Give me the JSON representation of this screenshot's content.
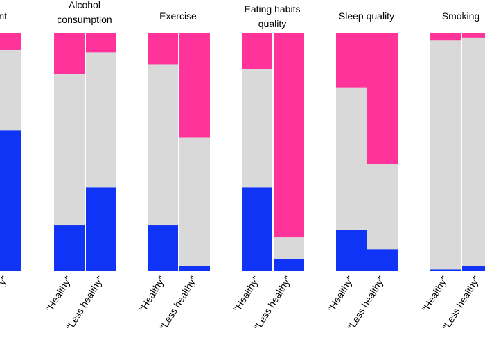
{
  "chart_data": {
    "type": "stacked_bar_panels",
    "panels": [
      {
        "title": [
          "nt"
        ],
        "categories": [
          "y\""
        ],
        "series": [
          {
            "color": "#1034f5",
            "values": [
              59
            ]
          },
          {
            "color": "#d9d9d9",
            "values": [
              34
            ]
          },
          {
            "color": "#ff3399",
            "values": [
              7
            ]
          }
        ]
      },
      {
        "title": [
          "Alcohol",
          "consumption"
        ],
        "categories": [
          "\"Healthy\"",
          "\"Less healthy\""
        ],
        "series": [
          {
            "color": "#1034f5",
            "values": [
              19,
              35
            ]
          },
          {
            "color": "#d9d9d9",
            "values": [
              64,
              57
            ]
          },
          {
            "color": "#ff3399",
            "values": [
              17,
              8
            ]
          }
        ]
      },
      {
        "title": [
          "Exercise"
        ],
        "categories": [
          "\"Healthy\"",
          "\"Less healthy\""
        ],
        "series": [
          {
            "color": "#1034f5",
            "values": [
              19,
              2
            ]
          },
          {
            "color": "#d9d9d9",
            "values": [
              68,
              54
            ]
          },
          {
            "color": "#ff3399",
            "values": [
              13,
              44
            ]
          }
        ]
      },
      {
        "title": [
          "Eating habits",
          "quality"
        ],
        "categories": [
          "\"Healthy\"",
          "\"Less healthy\""
        ],
        "series": [
          {
            "color": "#1034f5",
            "values": [
              35,
              5
            ]
          },
          {
            "color": "#d9d9d9",
            "values": [
              50,
              9
            ]
          },
          {
            "color": "#ff3399",
            "values": [
              15,
              86
            ]
          }
        ]
      },
      {
        "title": [
          "Sleep quality"
        ],
        "categories": [
          "\"Healthy\"",
          "\"Less healthy\""
        ],
        "series": [
          {
            "color": "#1034f5",
            "values": [
              17,
              9
            ]
          },
          {
            "color": "#d9d9d9",
            "values": [
              60,
              36
            ]
          },
          {
            "color": "#ff3399",
            "values": [
              23,
              55
            ]
          }
        ]
      },
      {
        "title": [
          "Smoking"
        ],
        "categories": [
          "\"Healthy\"",
          "\"Less healthy\""
        ],
        "series": [
          {
            "color": "#1034f5",
            "values": [
              0.5,
              2
            ]
          },
          {
            "color": "#d9d9d9",
            "values": [
              96.5,
              96
            ]
          },
          {
            "color": "#ff3399",
            "values": [
              3,
              2
            ]
          }
        ]
      }
    ]
  }
}
